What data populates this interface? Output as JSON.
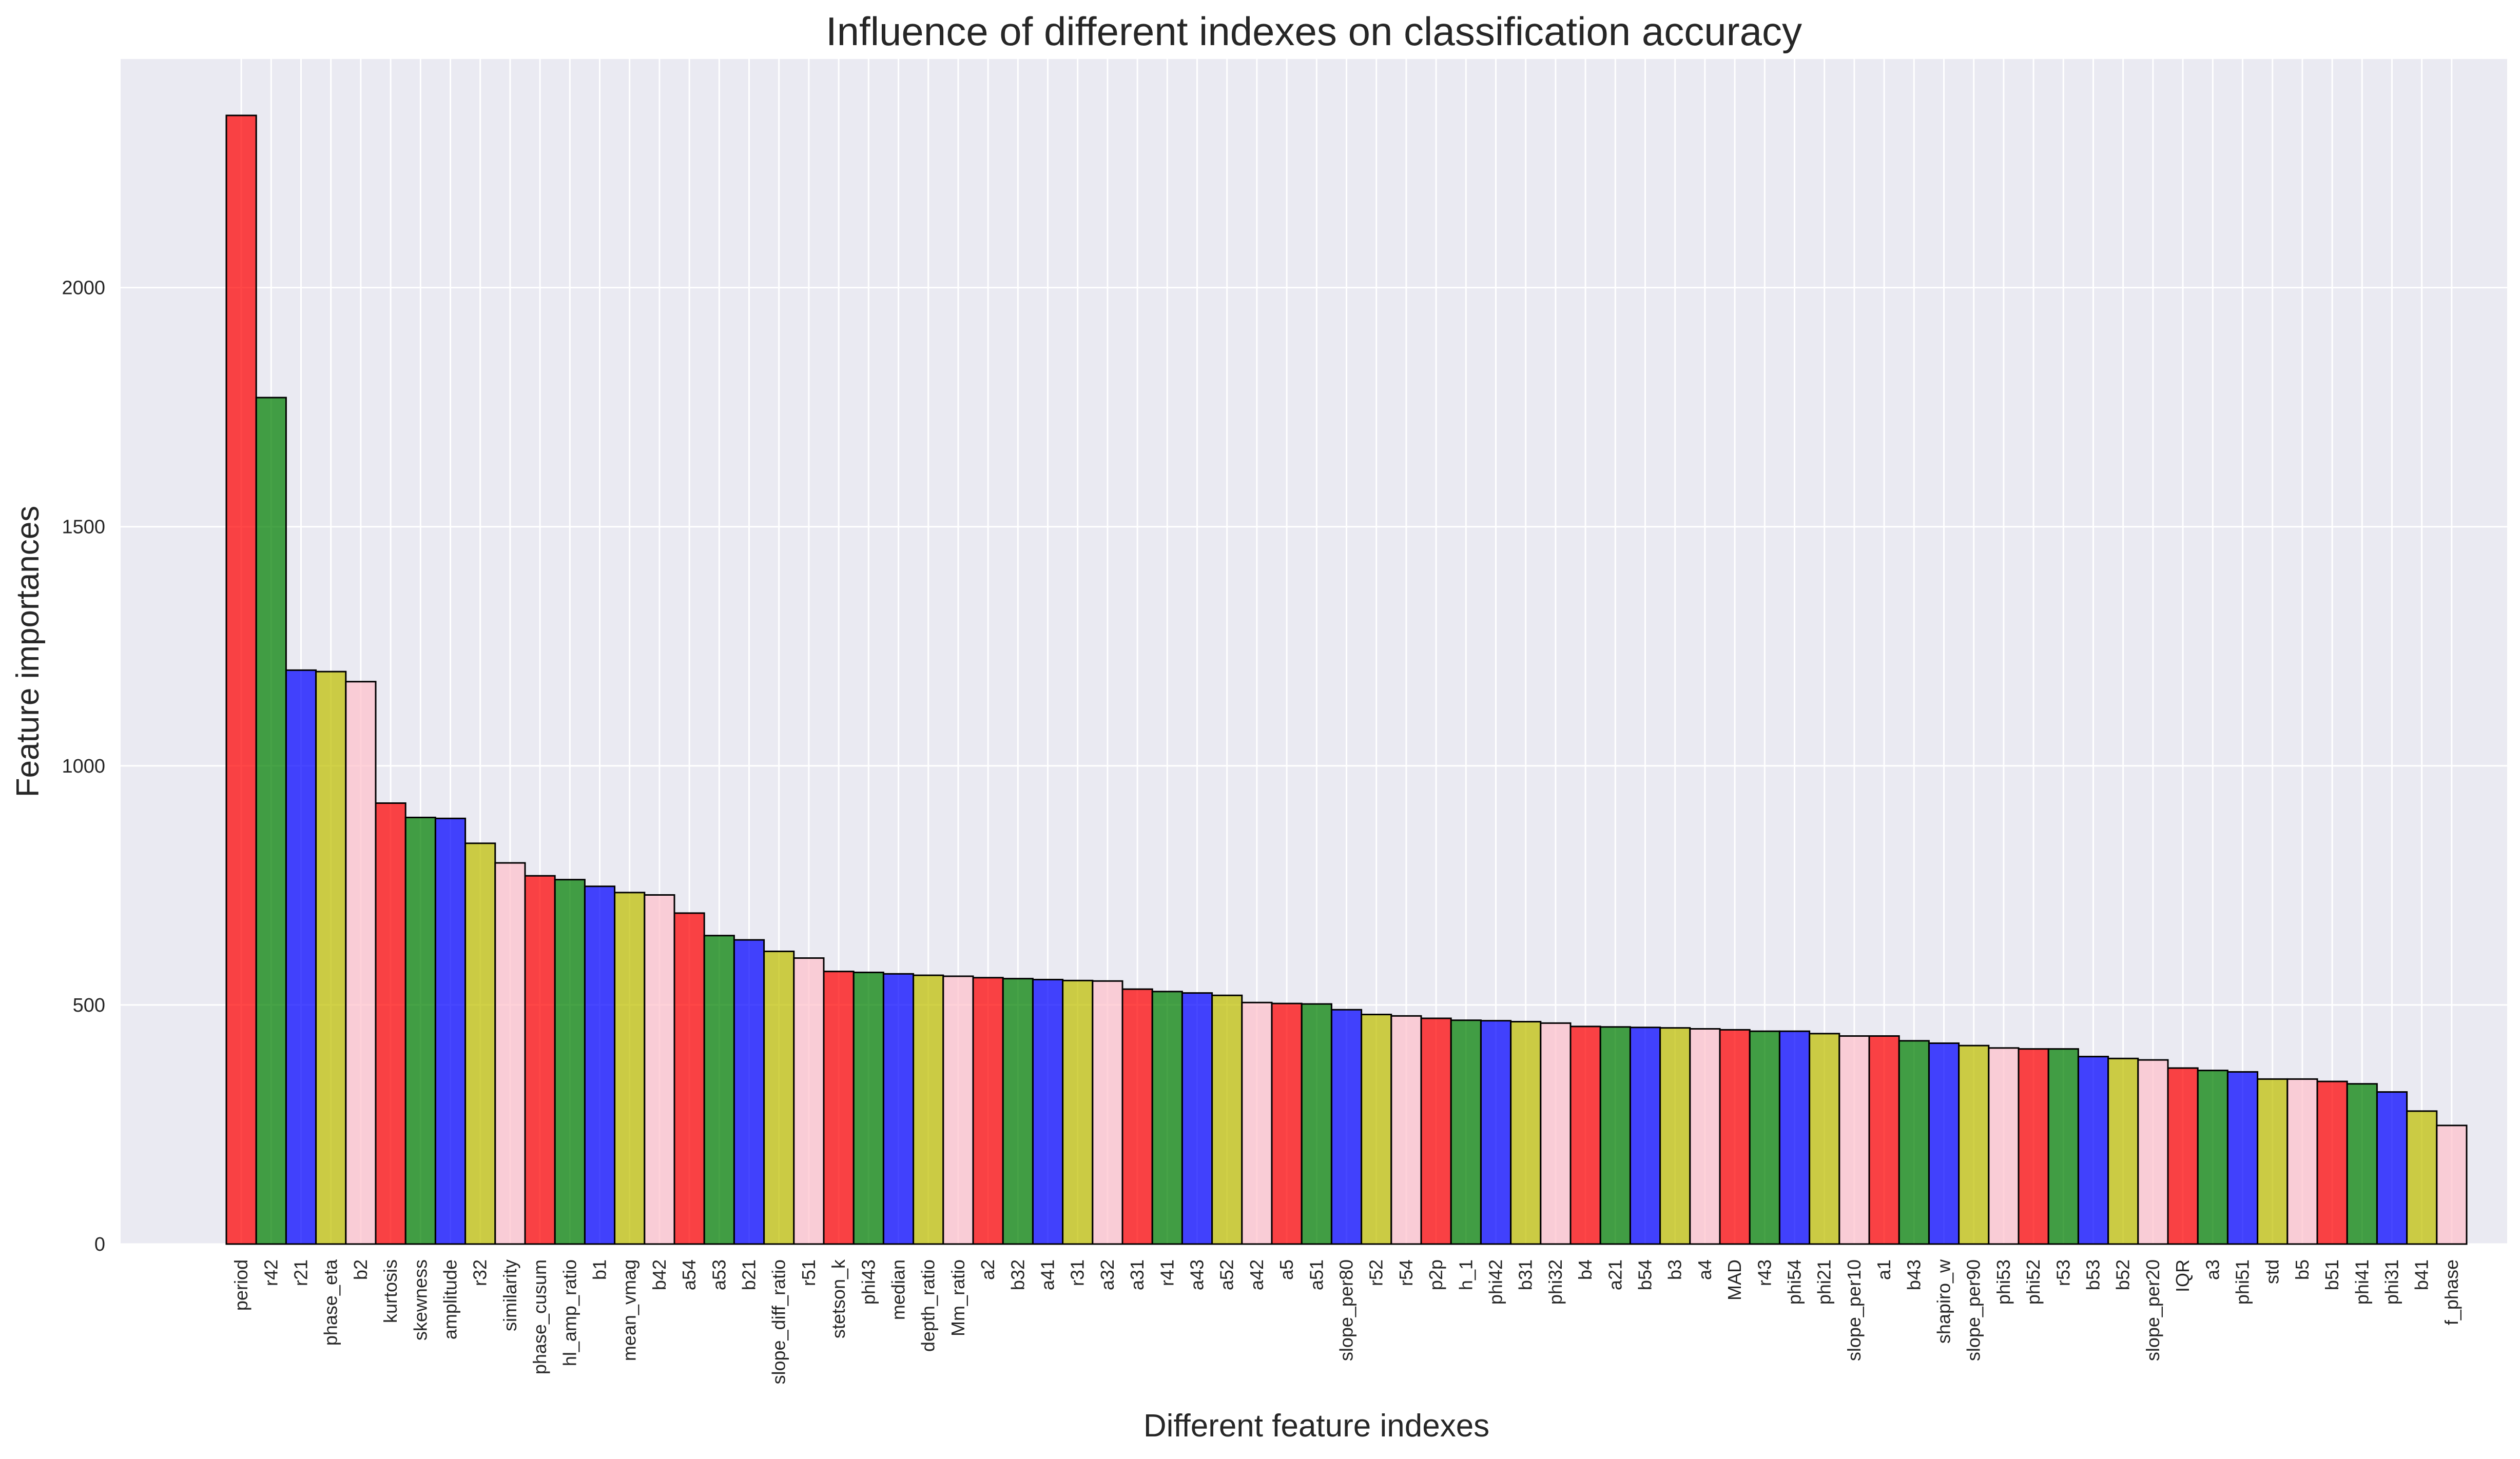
{
  "chart_data": {
    "type": "bar",
    "title": "Influence of different indexes on classification accuracy",
    "xlabel": "Different feature indexes",
    "ylabel": "Feature importances",
    "ylim": [
      0,
      2360
    ],
    "yticks": [
      0,
      500,
      1000,
      1500,
      2000
    ],
    "grid": true,
    "colors": {
      "background": "#eaeaf2",
      "grid": "#ffffff",
      "palette": [
        "#ff0000",
        "#008000",
        "#0000ff",
        "#bfbf00",
        "#ffc0cb"
      ],
      "edge": "#000000"
    },
    "categories": [
      "period",
      "r42",
      "r21",
      "phase_eta",
      "b2",
      "kurtosis",
      "skewness",
      "amplitude",
      "r32",
      "similarity",
      "phase_cusum",
      "hl_amp_ratio",
      "b1",
      "mean_vmag",
      "b42",
      "a54",
      "a53",
      "b21",
      "slope_diff_ratio",
      "r51",
      "stetson_k",
      "phi43",
      "median",
      "depth_ratio",
      "Mm_ratio",
      "a2",
      "b32",
      "a41",
      "r31",
      "a32",
      "a31",
      "r41",
      "a43",
      "a52",
      "a42",
      "a5",
      "a51",
      "slope_per80",
      "r52",
      "r54",
      "p2p",
      "h_1",
      "phi42",
      "b31",
      "phi32",
      "b4",
      "a21",
      "b54",
      "b3",
      "a4",
      "MAD",
      "r43",
      "phi54",
      "phi21",
      "slope_per10",
      "a1",
      "b43",
      "shapiro_w",
      "slope_per90",
      "phi53",
      "phi52",
      "r53",
      "b53",
      "b52",
      "slope_per20",
      "IQR",
      "a3",
      "phi51",
      "std",
      "b5",
      "b51",
      "phi41",
      "phi31",
      "b41",
      "f_phase"
    ],
    "values": [
      2360,
      1770,
      1200,
      1197,
      1176,
      922,
      892,
      890,
      838,
      797,
      770,
      762,
      748,
      735,
      730,
      692,
      645,
      636,
      612,
      598,
      570,
      568,
      565,
      562,
      560,
      557,
      555,
      553,
      551,
      550,
      533,
      528,
      525,
      520,
      505,
      503,
      502,
      490,
      480,
      477,
      472,
      468,
      467,
      465,
      462,
      455,
      454,
      453,
      452,
      450,
      448,
      445,
      445,
      440,
      435,
      435,
      425,
      420,
      415,
      410,
      408,
      408,
      392,
      388,
      385,
      368,
      363,
      360,
      345,
      345,
      340,
      335,
      318,
      278,
      248
    ]
  }
}
